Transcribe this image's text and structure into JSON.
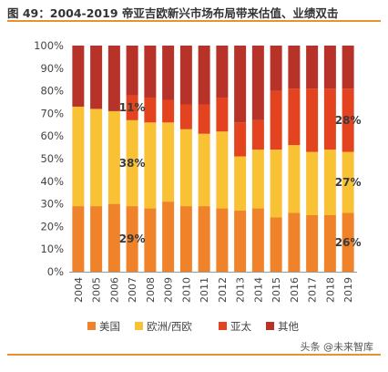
{
  "title": "图 49：2004-2019 帝亚吉欧新兴市场布局带来估值、业绩双击",
  "watermark": "头条 @未来智库",
  "chart_data": {
    "type": "bar",
    "stacked": true,
    "categories": [
      "2004",
      "2005",
      "2006",
      "2007",
      "2008",
      "2009",
      "2010",
      "2011",
      "2012",
      "2013",
      "2014",
      "2015",
      "2016",
      "2017",
      "2018",
      "2019"
    ],
    "y_ticks": [
      "0%",
      "10%",
      "20%",
      "30%",
      "40%",
      "50%",
      "60%",
      "70%",
      "80%",
      "90%",
      "100%"
    ],
    "ylim": [
      0,
      100
    ],
    "legend_position": "bottom",
    "series": [
      {
        "name": "美国",
        "color": "#f0822a",
        "values": [
          29,
          29,
          30,
          29,
          28,
          31,
          29,
          29,
          28,
          27,
          28,
          24,
          26,
          25,
          25,
          26
        ]
      },
      {
        "name": "欧洲/西欧",
        "color": "#f9c234",
        "values": [
          44,
          43,
          41,
          38,
          38,
          35,
          34,
          32,
          34,
          24,
          26,
          30,
          30,
          28,
          29,
          27
        ]
      },
      {
        "name": "亚太",
        "color": "#e3431e",
        "values": [
          0,
          0,
          0,
          11,
          11,
          10,
          11,
          13,
          15,
          15,
          13,
          26,
          25,
          28,
          27,
          28
        ]
      },
      {
        "name": "其他",
        "color": "#b73229",
        "values": [
          27,
          28,
          29,
          22,
          23,
          24,
          26,
          26,
          23,
          34,
          33,
          20,
          19,
          19,
          19,
          19
        ]
      }
    ],
    "data_labels": [
      {
        "series": 0,
        "index": 3,
        "text": "29%"
      },
      {
        "series": 1,
        "index": 3,
        "text": "38%"
      },
      {
        "series": 2,
        "index": 3,
        "text": "11%"
      },
      {
        "series": 0,
        "index": 15,
        "text": "26%"
      },
      {
        "series": 1,
        "index": 15,
        "text": "27%"
      },
      {
        "series": 2,
        "index": 15,
        "text": "28%"
      }
    ]
  }
}
